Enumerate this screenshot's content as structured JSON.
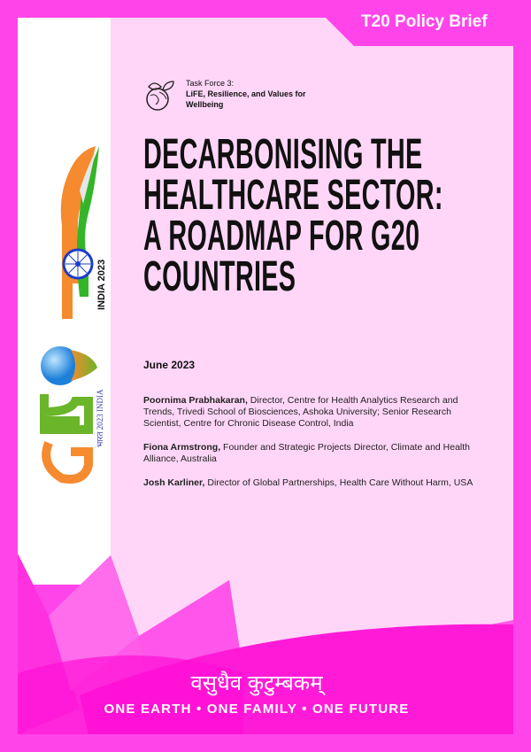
{
  "header": {
    "badge": "T20 Policy Brief"
  },
  "task_force": {
    "icon": "earth-leaves-icon",
    "line1": "Task Force 3:",
    "line2": "LiFE, Resilience, and Values for Wellbeing"
  },
  "title": {
    "lines": [
      "DECARBONISING THE",
      "HEALTHCARE SECTOR:",
      "A ROADMAP FOR G20",
      "COUNTRIES"
    ]
  },
  "date": "June 2023",
  "authors": [
    {
      "name": "Poornima Prabhakaran,",
      "affiliation": "Director, Centre for Health Analytics Research and Trends, Trivedi School of Biosciences, Ashoka University; Senior Research Scientist, Centre for Chronic Disease Control, India"
    },
    {
      "name": "Fiona Armstrong,",
      "affiliation": "Founder and Strategic Projects Director, Climate and Health Alliance, Australia"
    },
    {
      "name": "Josh Karliner,",
      "affiliation": "Director of Global Partnerships, Health Care Without Harm, USA"
    }
  ],
  "logos": {
    "t20": "INDIA 2023",
    "g20": "भारत 2023 INDIA"
  },
  "footer": {
    "sanskrit": "वसुधैव कुटुम्बकम्",
    "tagline": "ONE EARTH • ONE FAMILY • ONE FUTURE"
  },
  "colors": {
    "frame": "#ff45ea",
    "panel": "#ffd6f8",
    "text": "#111111"
  }
}
